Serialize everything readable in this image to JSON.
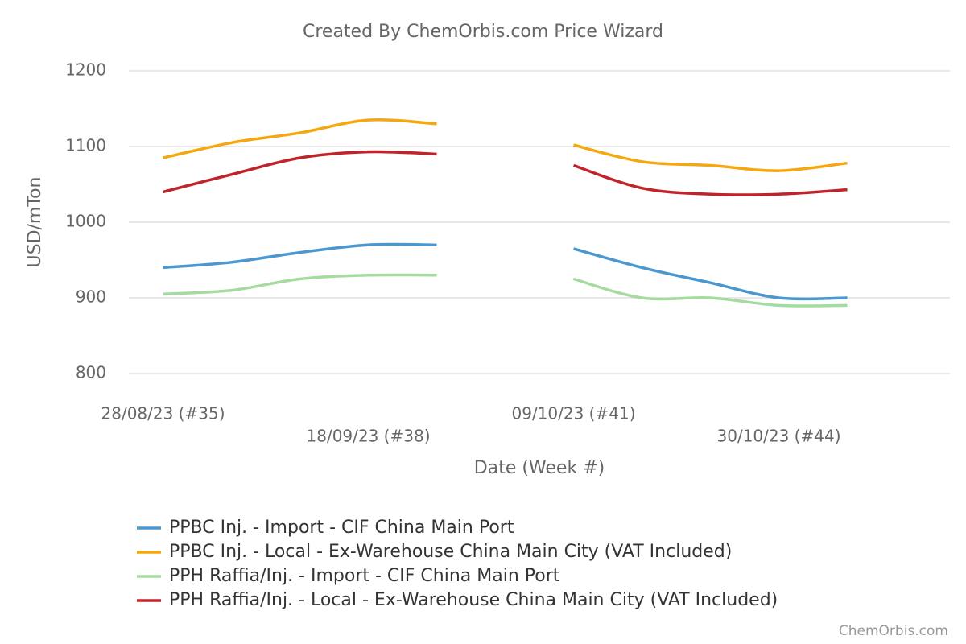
{
  "chart_data": {
    "type": "line",
    "title": "Created By ChemOrbis.com Price Wizard",
    "x_label": "Date (Week #)",
    "y_label": "USD/mTon",
    "credit": "ChemOrbis.com",
    "categories": [
      "28/08/23 (#35)",
      null,
      null,
      "18/09/23 (#38)",
      null,
      null,
      "09/10/23 (#41)",
      null,
      null,
      "30/10/23 (#44)",
      null
    ],
    "ylim": [
      800,
      1200
    ],
    "yticks": [
      800,
      900,
      1000,
      1100,
      1200
    ],
    "grid": true,
    "series": [
      {
        "name": "PPBC Inj. - Import - CIF China Main Port",
        "color": "#4a98cf",
        "values": [
          940,
          947,
          960,
          970,
          970,
          null,
          965,
          940,
          920,
          900,
          900
        ]
      },
      {
        "name": "PPBC Inj. - Local - Ex-Warehouse China Main City (VAT Included)",
        "color": "#f5a70f",
        "values": [
          1085,
          1105,
          1118,
          1135,
          1130,
          null,
          1102,
          1080,
          1075,
          1068,
          1078
        ]
      },
      {
        "name": "PPH Raffia/Inj. - Import - CIF China Main Port",
        "color": "#a6dba0",
        "values": [
          905,
          910,
          925,
          930,
          930,
          null,
          925,
          900,
          900,
          890,
          890
        ]
      },
      {
        "name": "PPH Raffia/Inj. - Local - Ex-Warehouse China Main City (VAT Included)",
        "color": "#c0232a",
        "values": [
          1040,
          1063,
          1085,
          1093,
          1090,
          null,
          1075,
          1045,
          1037,
          1037,
          1043
        ]
      }
    ]
  }
}
